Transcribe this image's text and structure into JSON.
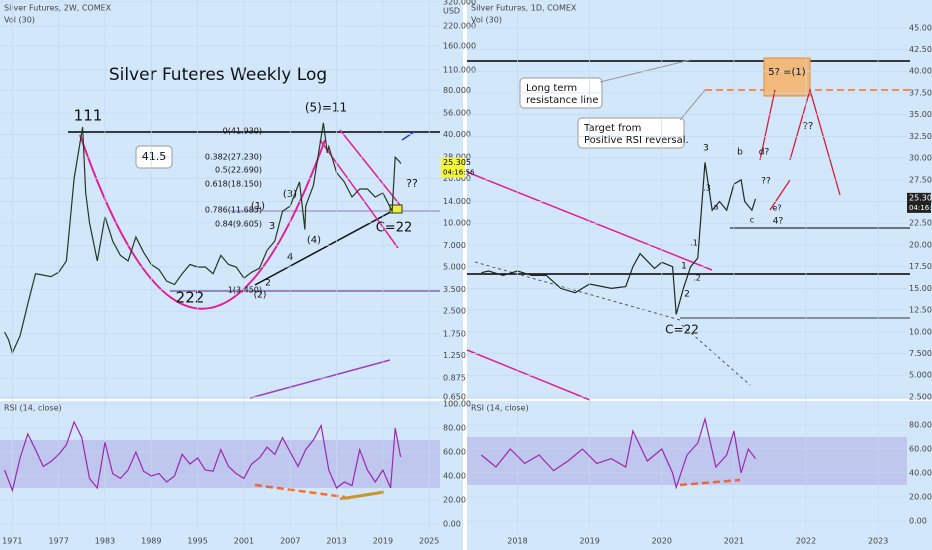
{
  "chart_data": [
    {
      "type": "line",
      "title": "Silver Futures, 2W, COMEX",
      "subtitle": "Vol (30)",
      "y_unit": "USD",
      "log_scale": true,
      "xlim": [
        1969.4,
        2026.4
      ],
      "ylim": [
        0.62,
        330
      ],
      "yticks": [
        {
          "value": 320,
          "label": "320.000"
        },
        {
          "value": 220,
          "label": "220.000"
        },
        {
          "value": 160,
          "label": "160.000"
        },
        {
          "value": 110,
          "label": "110.000"
        },
        {
          "value": 80,
          "label": "80.000"
        },
        {
          "value": 56,
          "label": "56.000"
        },
        {
          "value": 40,
          "label": "40.000"
        },
        {
          "value": 28,
          "label": "28.000"
        },
        {
          "value": 20,
          "label": "20.000"
        },
        {
          "value": 14,
          "label": "14.000"
        },
        {
          "value": 10,
          "label": "10.000"
        },
        {
          "value": 7,
          "label": "7.000"
        },
        {
          "value": 5,
          "label": "5.000"
        },
        {
          "value": 3.5,
          "label": "3.500"
        },
        {
          "value": 2.5,
          "label": "2.500"
        },
        {
          "value": 1.75,
          "label": "1.750"
        },
        {
          "value": 1.25,
          "label": "1.250"
        },
        {
          "value": 0.875,
          "label": "0.875"
        },
        {
          "value": 0.65,
          "label": "0.650"
        }
      ],
      "x": [
        1970,
        1970.5,
        1971,
        1972,
        1973,
        1974,
        1975,
        1976,
        1977,
        1978,
        1979,
        1980.1,
        1980.5,
        1981,
        1982,
        1983,
        1984,
        1985,
        1986,
        1987,
        1988,
        1989,
        1990,
        1991,
        1992,
        1993,
        1994,
        1995,
        1996,
        1997,
        1998,
        1999,
        2000,
        2001,
        2002,
        2003,
        2004,
        2005,
        2006,
        2007,
        2008.2,
        2008.9,
        2009,
        2010,
        2011.3,
        2011.8,
        2012,
        2013,
        2014,
        2015,
        2016,
        2017,
        2018,
        2019,
        2020.2,
        2020.6,
        2021.2,
        2021.3
      ],
      "series": [
        {
          "color": "#24391f",
          "values": [
            1.8,
            1.6,
            1.3,
            1.7,
            2.8,
            4.5,
            4.4,
            4.3,
            4.6,
            5.5,
            20,
            45,
            16,
            10,
            5.5,
            11,
            7.5,
            6,
            5.5,
            8,
            6.3,
            5.2,
            4.8,
            4,
            3.8,
            4.5,
            5.2,
            5,
            5,
            4.5,
            6,
            5.2,
            5,
            4.2,
            4.6,
            4.9,
            6.5,
            7.5,
            12,
            13,
            19,
            9,
            13,
            18,
            48,
            30,
            33,
            22,
            19,
            15,
            17,
            17,
            15,
            16,
            12,
            28,
            26,
            25.3
          ]
        }
      ],
      "last_price": {
        "value": 25.305,
        "label": "25.305"
      },
      "countdown": "04:16:56",
      "annotations": [
        "Silver Futeres Weekly  Log",
        "111",
        "222",
        "(5)=11",
        "41.5",
        "C=22",
        "??",
        "(1)",
        "3",
        "(3)",
        "(4)",
        "4",
        "2",
        "(2)",
        "0(41.930)",
        "0.382(27.230)",
        "0.5(22.690)",
        "0.618(18.150)",
        "0.786(11.685)",
        "0.84(9.605)",
        "1(3.450)"
      ]
    },
    {
      "type": "line",
      "title": "RSI (14, close)",
      "xlim": [
        1969.4,
        2026.4
      ],
      "ylim": [
        -6.7,
        103.3
      ],
      "band": [
        30,
        70
      ],
      "yticks": [
        {
          "value": 0,
          "label": "0.00"
        },
        {
          "value": 20,
          "label": "20.00"
        },
        {
          "value": 40,
          "label": "40.00"
        },
        {
          "value": 60,
          "label": "60.00"
        },
        {
          "value": 80,
          "label": "80.00"
        },
        {
          "value": 100,
          "label": "100.00"
        }
      ],
      "xticks": [
        1971,
        1977,
        1983,
        1989,
        1995,
        2001,
        2007,
        2013,
        2019,
        2025
      ],
      "x": [
        1970,
        1971,
        1972,
        1973,
        1974,
        1975,
        1976,
        1977,
        1978,
        1979,
        1980,
        1981,
        1982,
        1983,
        1984,
        1985,
        1986,
        1987,
        1988,
        1989,
        1990,
        1991,
        1992,
        1993,
        1994,
        1995,
        1996,
        1997,
        1998,
        1999,
        2000,
        2001,
        2002,
        2003,
        2004,
        2005,
        2006,
        2007,
        2008,
        2009,
        2010,
        2011,
        2012,
        2013,
        2014,
        2015,
        2016,
        2017,
        2018,
        2019,
        2020,
        2020.6,
        2021.3
      ],
      "series": [
        {
          "color": "#9c27b0",
          "values": [
            45,
            28,
            55,
            75,
            62,
            48,
            52,
            58,
            66,
            85,
            72,
            38,
            30,
            68,
            42,
            38,
            45,
            60,
            44,
            40,
            42,
            35,
            40,
            58,
            50,
            55,
            45,
            44,
            62,
            48,
            42,
            38,
            50,
            55,
            64,
            58,
            72,
            60,
            48,
            62,
            70,
            82,
            45,
            30,
            35,
            32,
            62,
            45,
            35,
            45,
            30,
            80,
            56
          ]
        }
      ]
    },
    {
      "type": "line",
      "title": "Silver Futures, 1D, COMEX",
      "subtitle": "Vol (30)",
      "log_scale": false,
      "xlim": [
        2017.3,
        2023.4
      ],
      "ylim": [
        2.15,
        48.2
      ],
      "yticks": [
        {
          "value": 45,
          "label": "45.000"
        },
        {
          "value": 42.5,
          "label": "42.500"
        },
        {
          "value": 40,
          "label": "40.000"
        },
        {
          "value": 37.5,
          "label": "37.500"
        },
        {
          "value": 35,
          "label": "35.000"
        },
        {
          "value": 32.5,
          "label": "32.500"
        },
        {
          "value": 30,
          "label": "30.000"
        },
        {
          "value": 27.5,
          "label": "27.500"
        },
        {
          "value": 25,
          "label": "25.000"
        },
        {
          "value": 22.5,
          "label": "22.500"
        },
        {
          "value": 20,
          "label": "20.000"
        },
        {
          "value": 17.5,
          "label": "17.500"
        },
        {
          "value": 15,
          "label": "15.000"
        },
        {
          "value": 12.5,
          "label": "12.500"
        },
        {
          "value": 10,
          "label": "10.000"
        },
        {
          "value": 7.5,
          "label": "7.500"
        },
        {
          "value": 5,
          "label": "5.000"
        },
        {
          "value": 2.5,
          "label": "2.500"
        }
      ],
      "x": [
        2017.5,
        2017.6,
        2017.8,
        2018,
        2018.2,
        2018.4,
        2018.6,
        2018.8,
        2019,
        2019.3,
        2019.5,
        2019.6,
        2019.7,
        2019.9,
        2020,
        2020.15,
        2020.2,
        2020.3,
        2020.4,
        2020.5,
        2020.55,
        2020.6,
        2020.7,
        2020.8,
        2020.9,
        2021,
        2021.1,
        2021.15,
        2021.25,
        2021.3
      ],
      "series": [
        {
          "color": "#1e2a1e",
          "values": [
            16.8,
            17,
            16.5,
            17,
            16.5,
            16.5,
            15,
            14.5,
            15.5,
            15,
            15.2,
            17.5,
            19,
            17.3,
            18,
            17.5,
            12,
            15,
            17.5,
            18.5,
            24,
            29.5,
            24,
            25,
            24,
            27,
            27.5,
            25,
            24,
            25.3
          ]
        }
      ],
      "last_price": {
        "value": 25.305,
        "label": "25.305"
      },
      "countdown": "04:16:56",
      "annotations": [
        "Long term",
        "resistance line",
        "Target from",
        "Positive RSI reversal.",
        "5? =(1)",
        "3",
        "b",
        "d?",
        "??",
        "??",
        "a",
        "c",
        "e?",
        "4?",
        "1",
        "2",
        ".1",
        ".2",
        ".3",
        "C=22"
      ]
    },
    {
      "type": "line",
      "title": "RSI (14, close)",
      "xlim": [
        2017.3,
        2023.4
      ],
      "ylim": [
        -9.2,
        100.8
      ],
      "band": [
        30,
        70
      ],
      "yticks": [
        {
          "value": 0,
          "label": "0.00"
        },
        {
          "value": 20,
          "label": "20.00"
        },
        {
          "value": 40,
          "label": "40.00"
        },
        {
          "value": 60,
          "label": "60.00"
        },
        {
          "value": 80,
          "label": "80.00"
        }
      ],
      "xticks": [
        2018,
        2019,
        2020,
        2021,
        2022,
        2023
      ],
      "x": [
        2017.5,
        2017.7,
        2017.9,
        2018.1,
        2018.3,
        2018.5,
        2018.7,
        2018.9,
        2019.1,
        2019.3,
        2019.5,
        2019.6,
        2019.8,
        2020,
        2020.15,
        2020.2,
        2020.35,
        2020.5,
        2020.6,
        2020.75,
        2020.9,
        2021,
        2021.1,
        2021.2,
        2021.3
      ],
      "series": [
        {
          "color": "#9c27b0",
          "values": [
            55,
            45,
            60,
            48,
            55,
            42,
            50,
            60,
            48,
            52,
            45,
            75,
            50,
            60,
            40,
            28,
            55,
            65,
            85,
            45,
            55,
            75,
            40,
            60,
            52
          ]
        }
      ]
    }
  ]
}
